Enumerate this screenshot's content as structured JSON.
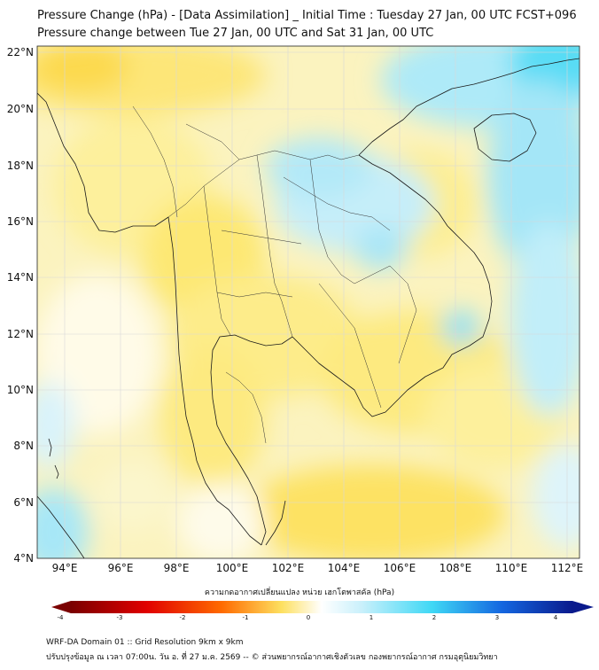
{
  "header": {
    "title_line1": "Pressure Change (hPa) - [Data Assimilation] _ Initial Time : Tuesday 27 Jan, 00 UTC FCST+096",
    "title_line2": "Pressure change between Tue 27 Jan, 00 UTC and Sat 31 Jan, 00 UTC"
  },
  "map": {
    "lat_labels": [
      "22°N",
      "20°N",
      "18°N",
      "16°N",
      "14°N",
      "12°N",
      "10°N",
      "8°N",
      "6°N",
      "4°N"
    ],
    "lon_labels": [
      "94°E",
      "96°E",
      "98°E",
      "100°E",
      "102°E",
      "104°E",
      "106°E",
      "108°E",
      "110°E",
      "112°E"
    ],
    "lat_range": [
      4,
      22
    ],
    "lon_range": [
      93,
      112.5
    ],
    "gridlines": true,
    "colors": {
      "neg_strong": "#7a0000",
      "neg_mid": "#ff3a00",
      "neg_weak": "#fde060",
      "zero": "#ffffff",
      "pos_weak": "#c9f0fb",
      "pos_mid": "#3fd8f5",
      "pos_strong": "#0a1a8c",
      "coastline": "#1a1a1a"
    }
  },
  "colorbar": {
    "label": "ความกดอากาศเปลี่ยนแปลง หน่วย เฮกโตพาสคัล (hPa)",
    "ticks": [
      "-4",
      "-3",
      "-2",
      "-1",
      "0",
      "1",
      "2",
      "3",
      "4"
    ],
    "range": [
      -4,
      4
    ]
  },
  "footer": {
    "line1": "WRF-DA Domain 01 :: Grid Resolution 9km x 9km",
    "line2": "ปรับปรุงข้อมูล ณ เวลา 07:00น. วัน อ. ที่ 27 ม.ค. 2569 -- © ส่วนพยากรณ์อากาศเชิงตัวเลข กองพยากรณ์อากาศ กรมอุตุนิยมวิทยา"
  }
}
